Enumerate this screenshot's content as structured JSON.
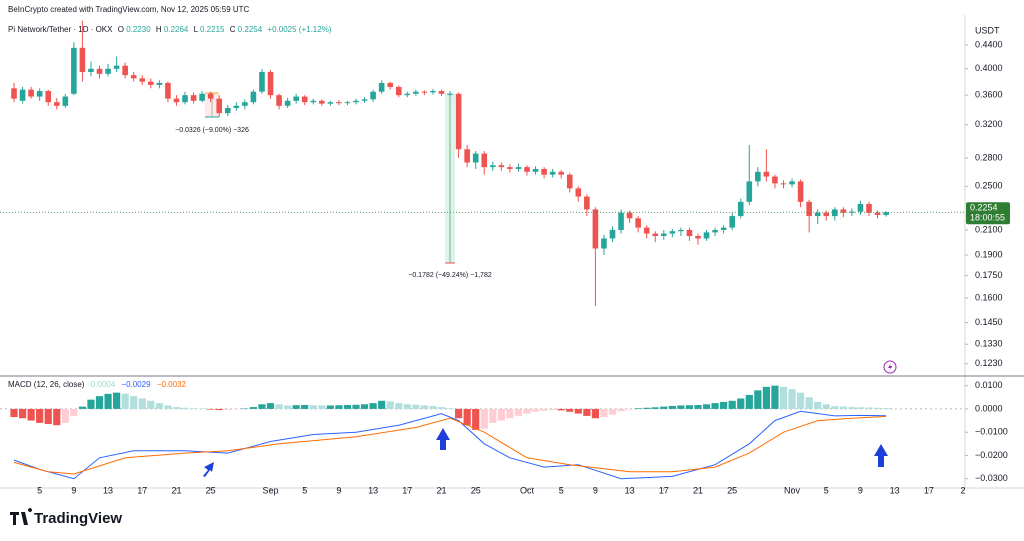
{
  "header": {
    "credit": "BeInCrypto created with TradingView.com, Nov 12, 2025 05:59 UTC",
    "symbol": "Pi Network/Tether · 1D · OKX",
    "open_label": "O",
    "open": "0.2230",
    "high_label": "H",
    "high": "0.2264",
    "low_label": "L",
    "low": "0.2215",
    "close_label": "C",
    "close": "0.2254",
    "change": "+0.0025 (+1.12%)",
    "currency": "USDT",
    "price_tag": "0.2254",
    "countdown": "18:00:55"
  },
  "annotations": [
    "−0.0326 (−9.00%) −326",
    "−0.1782 (−49.24%) −1,782"
  ],
  "footer": {
    "logo": "TradingView"
  },
  "chart_data": [
    {
      "type": "candlestick",
      "log_scale": true,
      "grid": false,
      "up_color": "#26a69a",
      "down_color": "#ef5350",
      "last_price_color": "#2e7d32",
      "xlim": [
        -1.64,
        111.23
      ],
      "ylim": [
        0.1176,
        0.496
      ],
      "yticks": [
        {
          "value": 0.44,
          "label": "0.4400"
        },
        {
          "value": 0.4,
          "label": "0.4000"
        },
        {
          "value": 0.36,
          "label": "0.3600"
        },
        {
          "value": 0.32,
          "label": "0.3200"
        },
        {
          "value": 0.28,
          "label": "0.2800"
        },
        {
          "value": 0.25,
          "label": "0.2500"
        },
        {
          "value": 0.21,
          "label": "0.2100"
        },
        {
          "value": 0.19,
          "label": "0.1900"
        },
        {
          "value": 0.175,
          "label": "0.1750"
        },
        {
          "value": 0.16,
          "label": "0.1600"
        },
        {
          "value": 0.145,
          "label": "0.1450"
        },
        {
          "value": 0.133,
          "label": "0.1330"
        },
        {
          "value": 0.123,
          "label": "0.1230"
        }
      ],
      "x": [
        0,
        1,
        2,
        3,
        4,
        5,
        6,
        7,
        8,
        9,
        10,
        11,
        12,
        13,
        14,
        15,
        16,
        17,
        18,
        19,
        20,
        21,
        22,
        23,
        24,
        25,
        26,
        27,
        28,
        29,
        30,
        31,
        32,
        33,
        34,
        35,
        36,
        37,
        38,
        39,
        40,
        41,
        42,
        43,
        44,
        45,
        46,
        47,
        48,
        49,
        50,
        51,
        52,
        53,
        54,
        55,
        56,
        57,
        58,
        59,
        60,
        61,
        62,
        63,
        64,
        65,
        66,
        67,
        68,
        69,
        70,
        71,
        72,
        73,
        74,
        75,
        76,
        77,
        78,
        79,
        80,
        81,
        82,
        83,
        84,
        85,
        86,
        87,
        88,
        89,
        90,
        91,
        92,
        93,
        94,
        95,
        96,
        97,
        98,
        99,
        100,
        101,
        102
      ],
      "open": [
        0.37,
        0.352,
        0.368,
        0.358,
        0.366,
        0.35,
        0.345,
        0.362,
        0.435,
        0.395,
        0.4,
        0.392,
        0.4,
        0.405,
        0.39,
        0.385,
        0.38,
        0.375,
        0.378,
        0.355,
        0.35,
        0.36,
        0.352,
        0.362,
        0.355,
        0.335,
        0.342,
        0.345,
        0.35,
        0.365,
        0.395,
        0.36,
        0.345,
        0.352,
        0.358,
        0.35,
        0.352,
        0.348,
        0.35,
        0.349,
        0.35,
        0.352,
        0.354,
        0.365,
        0.378,
        0.372,
        0.36,
        0.362,
        0.365,
        0.364,
        0.366,
        0.362,
        0.362,
        0.29,
        0.275,
        0.285,
        0.27,
        0.272,
        0.27,
        0.268,
        0.27,
        0.265,
        0.268,
        0.262,
        0.265,
        0.262,
        0.248,
        0.24,
        0.228,
        0.195,
        0.203,
        0.21,
        0.225,
        0.22,
        0.212,
        0.207,
        0.205,
        0.207,
        0.209,
        0.21,
        0.205,
        0.203,
        0.208,
        0.21,
        0.212,
        0.222,
        0.235,
        0.255,
        0.265,
        0.26,
        0.253,
        0.252,
        0.255,
        0.235,
        0.222,
        0.225,
        0.222,
        0.228,
        0.225,
        0.226,
        0.233,
        0.225,
        0.223
      ],
      "high": [
        0.378,
        0.372,
        0.372,
        0.37,
        0.368,
        0.356,
        0.362,
        0.445,
        0.485,
        0.412,
        0.405,
        0.408,
        0.42,
        0.41,
        0.395,
        0.39,
        0.385,
        0.382,
        0.38,
        0.36,
        0.365,
        0.364,
        0.366,
        0.365,
        0.36,
        0.346,
        0.35,
        0.354,
        0.368,
        0.4,
        0.398,
        0.362,
        0.356,
        0.362,
        0.36,
        0.355,
        0.354,
        0.352,
        0.353,
        0.352,
        0.355,
        0.357,
        0.368,
        0.382,
        0.38,
        0.374,
        0.365,
        0.368,
        0.367,
        0.369,
        0.368,
        0.366,
        0.364,
        0.295,
        0.288,
        0.288,
        0.276,
        0.275,
        0.273,
        0.274,
        0.272,
        0.271,
        0.27,
        0.268,
        0.267,
        0.264,
        0.25,
        0.242,
        0.23,
        0.206,
        0.213,
        0.228,
        0.227,
        0.222,
        0.214,
        0.209,
        0.21,
        0.211,
        0.212,
        0.212,
        0.207,
        0.21,
        0.212,
        0.214,
        0.225,
        0.238,
        0.295,
        0.27,
        0.29,
        0.262,
        0.256,
        0.258,
        0.257,
        0.237,
        0.228,
        0.227,
        0.23,
        0.23,
        0.229,
        0.236,
        0.235,
        0.227,
        0.2264
      ],
      "low": [
        0.35,
        0.348,
        0.355,
        0.352,
        0.345,
        0.34,
        0.342,
        0.36,
        0.38,
        0.388,
        0.385,
        0.388,
        0.395,
        0.385,
        0.38,
        0.375,
        0.37,
        0.37,
        0.35,
        0.345,
        0.347,
        0.348,
        0.35,
        0.35,
        0.33,
        0.331,
        0.338,
        0.34,
        0.347,
        0.362,
        0.355,
        0.34,
        0.342,
        0.348,
        0.346,
        0.347,
        0.345,
        0.345,
        0.346,
        0.346,
        0.347,
        0.349,
        0.35,
        0.362,
        0.368,
        0.357,
        0.357,
        0.359,
        0.36,
        0.361,
        0.359,
        0.358,
        0.28,
        0.27,
        0.268,
        0.262,
        0.266,
        0.266,
        0.264,
        0.265,
        0.261,
        0.262,
        0.258,
        0.259,
        0.258,
        0.244,
        0.235,
        0.222,
        0.155,
        0.19,
        0.2,
        0.207,
        0.216,
        0.208,
        0.203,
        0.2,
        0.202,
        0.204,
        0.205,
        0.201,
        0.198,
        0.201,
        0.205,
        0.207,
        0.21,
        0.22,
        0.232,
        0.25,
        0.255,
        0.248,
        0.248,
        0.249,
        0.23,
        0.208,
        0.215,
        0.218,
        0.218,
        0.221,
        0.222,
        0.223,
        0.222,
        0.22,
        0.2215
      ],
      "close": [
        0.355,
        0.368,
        0.358,
        0.366,
        0.35,
        0.345,
        0.358,
        0.435,
        0.395,
        0.4,
        0.392,
        0.4,
        0.405,
        0.39,
        0.385,
        0.38,
        0.375,
        0.378,
        0.355,
        0.35,
        0.36,
        0.352,
        0.362,
        0.355,
        0.335,
        0.342,
        0.345,
        0.35,
        0.365,
        0.395,
        0.36,
        0.345,
        0.352,
        0.358,
        0.35,
        0.352,
        0.348,
        0.35,
        0.349,
        0.35,
        0.352,
        0.354,
        0.365,
        0.378,
        0.372,
        0.36,
        0.362,
        0.365,
        0.364,
        0.366,
        0.362,
        0.362,
        0.29,
        0.275,
        0.285,
        0.27,
        0.272,
        0.27,
        0.268,
        0.27,
        0.265,
        0.268,
        0.262,
        0.265,
        0.262,
        0.248,
        0.24,
        0.228,
        0.195,
        0.203,
        0.21,
        0.225,
        0.22,
        0.212,
        0.207,
        0.205,
        0.207,
        0.209,
        0.21,
        0.205,
        0.203,
        0.208,
        0.21,
        0.212,
        0.222,
        0.235,
        0.255,
        0.265,
        0.26,
        0.253,
        0.252,
        0.255,
        0.235,
        0.222,
        0.225,
        0.222,
        0.228,
        0.225,
        0.226,
        0.233,
        0.225,
        0.223,
        0.2254
      ]
    },
    {
      "type": "macd",
      "title": "MACD (12, 26, close)",
      "xlim": [
        -1.64,
        111.23
      ],
      "ylim": [
        -0.034,
        0.0133
      ],
      "yticks": [
        {
          "value": 0.01,
          "label": "0.0100"
        },
        {
          "value": 0,
          "label": "0.0000"
        },
        {
          "value": -0.01,
          "label": "−0.0100"
        },
        {
          "value": -0.02,
          "label": "−0.0200"
        },
        {
          "value": -0.03,
          "label": "−0.0300"
        }
      ],
      "xticks": [
        {
          "value": 3,
          "label": "5"
        },
        {
          "value": 7,
          "label": "9"
        },
        {
          "value": 11,
          "label": "13"
        },
        {
          "value": 15,
          "label": "17"
        },
        {
          "value": 19,
          "label": "21"
        },
        {
          "value": 23,
          "label": "25"
        },
        {
          "value": 30,
          "label": "Sep"
        },
        {
          "value": 34,
          "label": "5"
        },
        {
          "value": 38,
          "label": "9"
        },
        {
          "value": 42,
          "label": "13"
        },
        {
          "value": 46,
          "label": "17"
        },
        {
          "value": 50,
          "label": "21"
        },
        {
          "value": 54,
          "label": "25"
        },
        {
          "value": 60,
          "label": "Oct"
        },
        {
          "value": 64,
          "label": "5"
        },
        {
          "value": 68,
          "label": "9"
        },
        {
          "value": 72,
          "label": "13"
        },
        {
          "value": 76,
          "label": "17"
        },
        {
          "value": 80,
          "label": "21"
        },
        {
          "value": 84,
          "label": "25"
        },
        {
          "value": 91,
          "label": "Nov"
        },
        {
          "value": 95,
          "label": "5"
        },
        {
          "value": 99,
          "label": "9"
        },
        {
          "value": 103,
          "label": "13"
        },
        {
          "value": 107,
          "label": "17"
        },
        {
          "value": 111,
          "label": "2"
        }
      ],
      "histogram": {
        "legend_value": "0.0004",
        "legend_color": "#9fd8cf",
        "colors": {
          "up_grow": "#26a69a",
          "up_fall": "#b2dfdb",
          "down_fall": "#ef5350",
          "down_grow": "#ffcdd2"
        },
        "x": [
          0,
          1,
          2,
          3,
          4,
          5,
          6,
          7,
          8,
          9,
          10,
          11,
          12,
          13,
          14,
          15,
          16,
          17,
          18,
          19,
          20,
          21,
          22,
          23,
          24,
          25,
          26,
          27,
          28,
          29,
          30,
          31,
          32,
          33,
          34,
          35,
          36,
          37,
          38,
          39,
          40,
          41,
          42,
          43,
          44,
          45,
          46,
          47,
          48,
          49,
          50,
          51,
          52,
          53,
          54,
          55,
          56,
          57,
          58,
          59,
          60,
          61,
          62,
          63,
          64,
          65,
          66,
          67,
          68,
          69,
          70,
          71,
          72,
          73,
          74,
          75,
          76,
          77,
          78,
          79,
          80,
          81,
          82,
          83,
          84,
          85,
          86,
          87,
          88,
          89,
          90,
          91,
          92,
          93,
          94,
          95,
          96,
          97,
          98,
          99,
          100,
          101,
          102
        ],
        "values": [
          -0.0035,
          -0.004,
          -0.005,
          -0.006,
          -0.0065,
          -0.007,
          -0.006,
          -0.003,
          0.001,
          0.004,
          0.0055,
          0.0065,
          0.007,
          0.0065,
          0.0055,
          0.0045,
          0.0035,
          0.0025,
          0.0015,
          0.0008,
          0.0005,
          0.0003,
          0.0002,
          -0.0003,
          -0.0005,
          -0.0004,
          -0.0002,
          0.0002,
          0.0008,
          0.002,
          0.0025,
          0.002,
          0.0015,
          0.0016,
          0.0017,
          0.0016,
          0.0015,
          0.0015,
          0.0016,
          0.0017,
          0.0018,
          0.002,
          0.0025,
          0.0035,
          0.0032,
          0.0025,
          0.002,
          0.0018,
          0.0015,
          0.0012,
          0.0008,
          0.0003,
          -0.004,
          -0.007,
          -0.009,
          -0.0085,
          -0.006,
          -0.005,
          -0.004,
          -0.003,
          -0.002,
          -0.0012,
          -0.0008,
          -0.0005,
          -0.0006,
          -0.0012,
          -0.002,
          -0.003,
          -0.004,
          -0.0035,
          -0.0025,
          -0.001,
          -0.0003,
          0.0003,
          0.0005,
          0.0007,
          0.001,
          0.0013,
          0.0015,
          0.0016,
          0.0017,
          0.002,
          0.0025,
          0.003,
          0.0035,
          0.0045,
          0.006,
          0.008,
          0.0095,
          0.01,
          0.0095,
          0.0085,
          0.007,
          0.005,
          0.003,
          0.002,
          0.0012,
          0.001,
          0.0008,
          0.0007,
          0.0006,
          0.0005,
          0.0004
        ]
      },
      "series": [
        {
          "color": "#2962ff",
          "legend_value": "−0.0029",
          "x": [
            0,
            3,
            7,
            10,
            14,
            20,
            25,
            30,
            35,
            40,
            45,
            50,
            52,
            55,
            58,
            62,
            66,
            71,
            77,
            82,
            86,
            89,
            92,
            96,
            99,
            102
          ],
          "values": [
            -0.022,
            -0.026,
            -0.03,
            -0.021,
            -0.018,
            -0.018,
            -0.019,
            -0.014,
            -0.011,
            -0.01,
            -0.007,
            -0.002,
            -0.005,
            -0.015,
            -0.021,
            -0.025,
            -0.024,
            -0.03,
            -0.029,
            -0.024,
            -0.015,
            -0.005,
            -0.001,
            -0.003,
            -0.0028,
            -0.0029
          ]
        },
        {
          "color": "#ff6d00",
          "legend_value": "−0.0032",
          "x": [
            0,
            4,
            7,
            13,
            20,
            25,
            31,
            40,
            47,
            51,
            55,
            60,
            65,
            72,
            77,
            82,
            86,
            90,
            94,
            98,
            102
          ],
          "values": [
            -0.023,
            -0.027,
            -0.028,
            -0.021,
            -0.019,
            -0.018,
            -0.015,
            -0.012,
            -0.008,
            -0.004,
            -0.01,
            -0.021,
            -0.024,
            -0.027,
            -0.027,
            -0.025,
            -0.019,
            -0.01,
            -0.005,
            -0.004,
            -0.0032
          ]
        }
      ]
    }
  ]
}
